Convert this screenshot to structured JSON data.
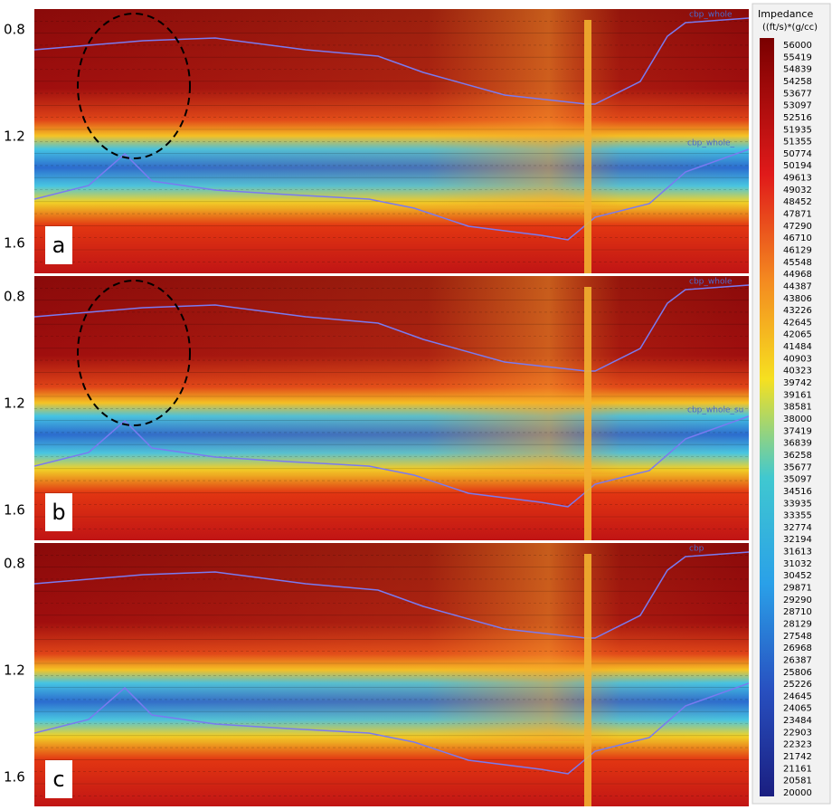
{
  "panels": [
    {
      "label": "a",
      "yticks": [
        "0.8",
        "1.2",
        "1.6"
      ],
      "horizon_labels": [
        "cbp_whole",
        "cbp_whole_"
      ]
    },
    {
      "label": "b",
      "yticks": [
        "0.8",
        "1.2",
        "1.6"
      ],
      "horizon_labels": [
        "cbp_whole",
        "cbp_whole_su"
      ]
    },
    {
      "label": "c",
      "yticks": [
        "0.8",
        "1.2",
        "1.6"
      ],
      "horizon_labels": [
        "cbp"
      ]
    }
  ],
  "colorbar": {
    "title": "Impedance",
    "unit": "((ft/s)*(g/cc)",
    "labels": [
      56000,
      55419,
      54839,
      54258,
      53677,
      53097,
      52516,
      51935,
      51355,
      50774,
      50194,
      49613,
      49032,
      48452,
      47871,
      47290,
      46710,
      46129,
      45548,
      44968,
      44387,
      43806,
      43226,
      42645,
      42065,
      41484,
      40903,
      40323,
      39742,
      39161,
      38581,
      38000,
      37419,
      36839,
      36258,
      35677,
      35097,
      34516,
      33935,
      33355,
      32774,
      32194,
      31613,
      31032,
      30452,
      29871,
      29290,
      28710,
      28129,
      27548,
      26968,
      26387,
      25806,
      25226,
      24645,
      24065,
      23484,
      22903,
      22323,
      21742,
      21161,
      20581,
      20000
    ]
  }
}
